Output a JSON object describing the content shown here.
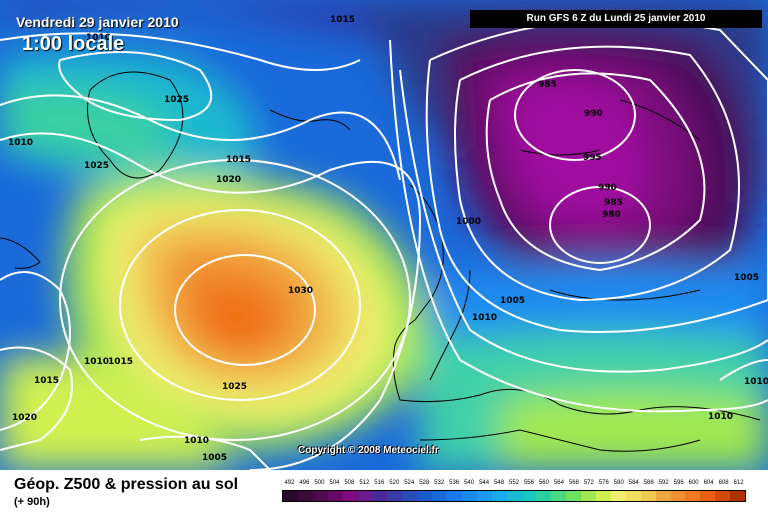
{
  "header": {
    "valid_date": "Vendredi 29 janvier 2010",
    "valid_time": "1:00 locale",
    "run_info": "Run GFS 6 Z du Lundi 25 janvier 2010"
  },
  "copyright": "Copyright © 2008 Meteociel.fr",
  "legend": {
    "title": "Géop. Z500 & pression au sol",
    "subtitle": "(+ 90h)",
    "scale_values": [
      "492",
      "496",
      "500",
      "504",
      "508",
      "512",
      "516",
      "520",
      "524",
      "528",
      "532",
      "536",
      "540",
      "544",
      "548",
      "552",
      "556",
      "560",
      "564",
      "568",
      "572",
      "576",
      "580",
      "584",
      "588",
      "592",
      "596",
      "600",
      "604",
      "608",
      "612"
    ],
    "scale_colors": [
      "#2a0a2a",
      "#3a0a3a",
      "#500a50",
      "#660a66",
      "#800a80",
      "#6a1a8a",
      "#4a2a9a",
      "#3a3aaa",
      "#2a4aba",
      "#1a5aca",
      "#1a6ada",
      "#1a7ae8",
      "#1a8af0",
      "#1a9af0",
      "#1aaaee",
      "#1abad8",
      "#1ac8c0",
      "#2ad0a0",
      "#4ad880",
      "#70e060",
      "#a0e850",
      "#d0f050",
      "#f0f070",
      "#f0e060",
      "#f0c850",
      "#f0a840",
      "#f09030",
      "#f07820",
      "#e86010",
      "#d04808",
      "#b03000"
    ],
    "unit_note": ""
  },
  "isobars": [
    {
      "label": "1015"
    },
    {
      "label": "1010"
    },
    {
      "label": "1025"
    },
    {
      "label": "1010"
    },
    {
      "label": "1025"
    },
    {
      "label": "1015"
    },
    {
      "label": "1020"
    },
    {
      "label": "1030"
    },
    {
      "label": "1010"
    },
    {
      "label": "1015"
    },
    {
      "label": "1015"
    },
    {
      "label": "1020"
    },
    {
      "label": "1025"
    },
    {
      "label": "1010"
    },
    {
      "label": "1005"
    },
    {
      "label": "985"
    },
    {
      "label": "990"
    },
    {
      "label": "995"
    },
    {
      "label": "990"
    },
    {
      "label": "985"
    },
    {
      "label": "980"
    },
    {
      "label": "1000"
    },
    {
      "label": "1005"
    },
    {
      "label": "1010"
    },
    {
      "label": "1005"
    },
    {
      "label": "1010"
    },
    {
      "label": "1010"
    }
  ],
  "colors": {
    "isobar": "#ffffff",
    "coast": "#000000"
  }
}
